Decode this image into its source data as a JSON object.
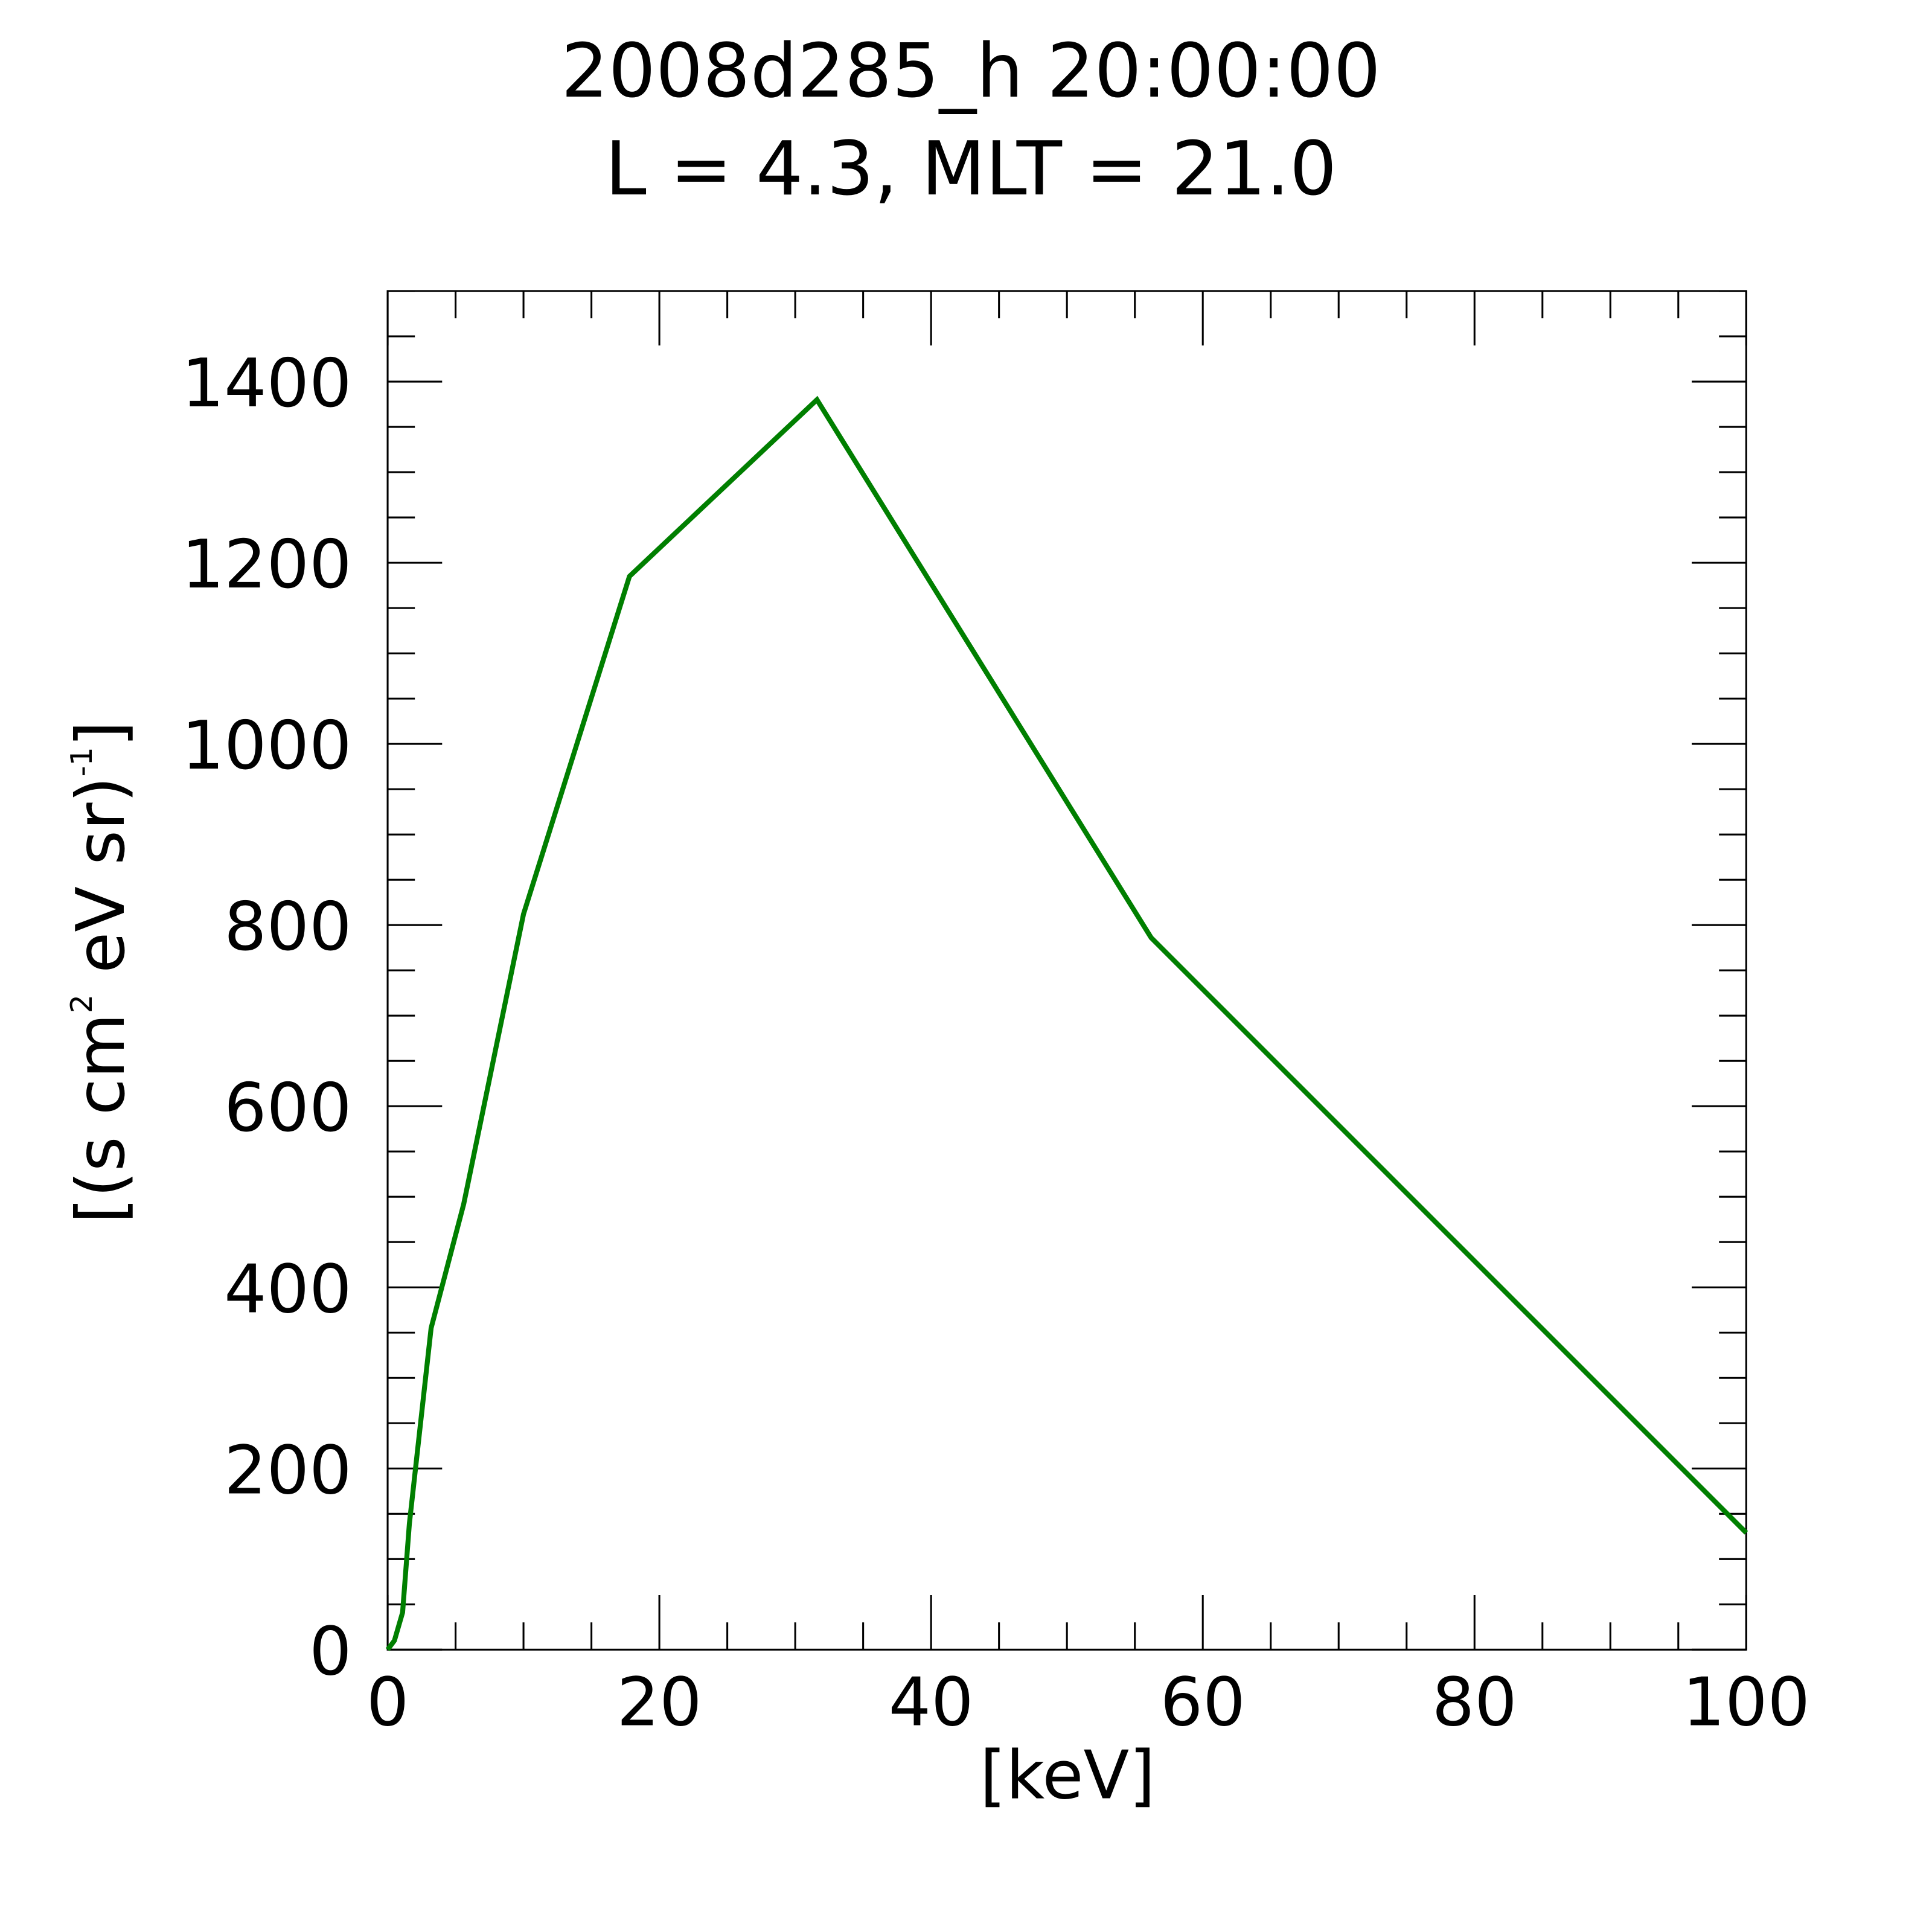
{
  "chart_data": {
    "type": "line",
    "title": "2008d285_h  20:00:00",
    "subtitle": "L = 4.3, MLT = 21.0",
    "xlabel": "[keV]",
    "ylabel": {
      "base": "[(s cm",
      "sup1": "2",
      "mid": " eV sr)",
      "sup2": "-1",
      "end": "]"
    },
    "xlim": [
      0,
      100
    ],
    "ylim": [
      0,
      1500
    ],
    "x_ticks": [
      0,
      20,
      40,
      60,
      80,
      100
    ],
    "x_tick_labels": [
      "0",
      "20",
      "40",
      "60",
      "80",
      "100"
    ],
    "y_ticks": [
      0,
      200,
      400,
      600,
      800,
      1000,
      1200,
      1400
    ],
    "y_tick_labels": [
      "0",
      "200",
      "400",
      "600",
      "800",
      "1000",
      "1200",
      "1400"
    ],
    "x_minor_step": 5,
    "y_minor_step": 50,
    "grid": false,
    "series": [
      {
        "color": "#007f00",
        "x": [
          0,
          0.5,
          1.1,
          1.6,
          3.2,
          5.6,
          10.0,
          17.8,
          31.6,
          56.2,
          100
        ],
        "y": [
          0,
          10,
          41,
          139,
          355,
          492,
          812,
          1185,
          1380,
          786,
          129
        ]
      }
    ]
  }
}
